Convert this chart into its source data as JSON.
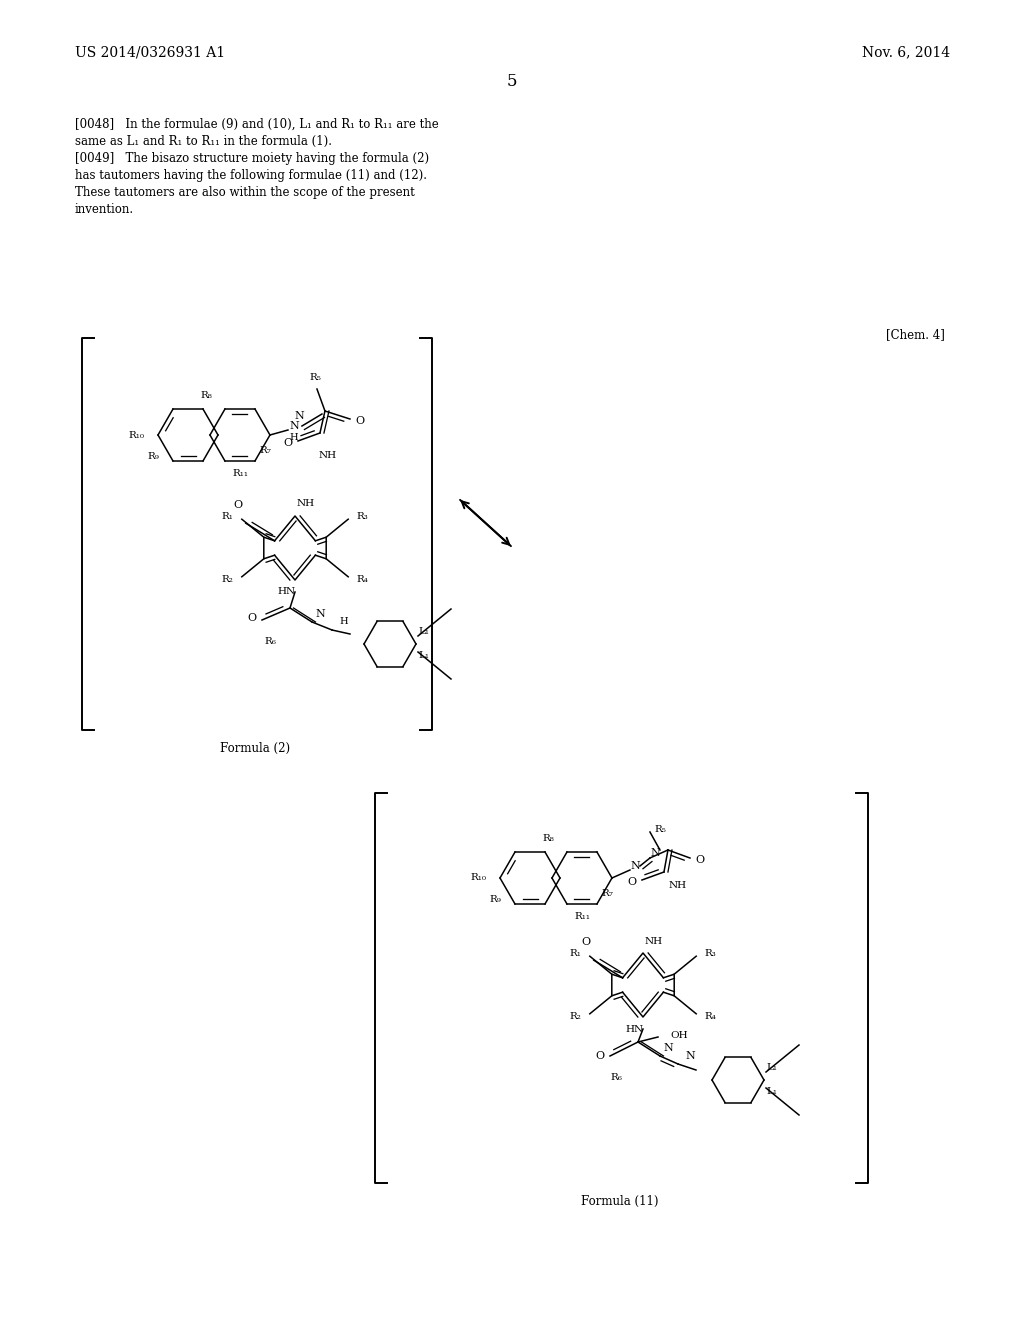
{
  "background_color": "#ffffff",
  "page_number": "5",
  "header_left": "US 2014/0326931 A1",
  "header_right": "Nov. 6, 2014",
  "chem_label": "[Chem. 4]",
  "para0048_lines": [
    "[0048]   In the formulae (9) and (10), L₁ and R₁ to R₁₁ are the",
    "same as L₁ and R₁ to R₁₁ in the formula (1)."
  ],
  "para0049_lines": [
    "[0049]   The bisazo structure moiety having the formula (2)",
    "has tautomers having the following formulae (11) and (12).",
    "These tautomers are also within the scope of the present",
    "invention."
  ],
  "formula2_label": "Formula (2)",
  "formula11_label": "Formula (11)"
}
